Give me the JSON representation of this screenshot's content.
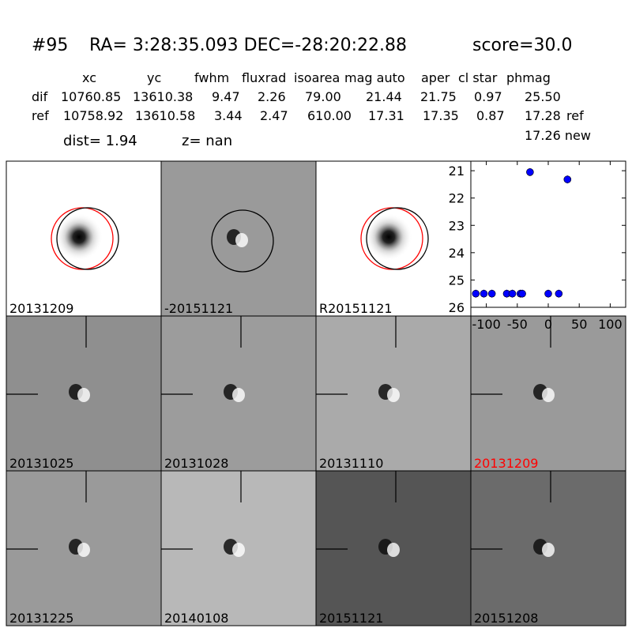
{
  "header": {
    "title_id": "#95",
    "title_coords": "RA= 3:28:35.093 DEC=-28:20:22.88",
    "title_score": "score=30.0",
    "columns": [
      "xc",
      "yc",
      "fwhm",
      "fluxrad",
      "isoarea",
      "mag auto",
      "aper",
      "cl star",
      "phmag"
    ],
    "rows": [
      {
        "label": "dif",
        "values": [
          "10760.85",
          "13610.38",
          "9.47",
          "2.26",
          "79.00",
          "21.44",
          "21.75",
          "0.97",
          "25.50"
        ],
        "suffix": ""
      },
      {
        "label": "ref",
        "values": [
          "10758.92",
          "13610.58",
          "3.44",
          "2.47",
          "610.00",
          "17.31",
          "17.35",
          "0.87",
          "17.28"
        ],
        "suffix": "ref"
      }
    ],
    "extra_phmag": "17.26 new",
    "dist": "dist=  1.94",
    "z": "z=   nan"
  },
  "stamps": [
    {
      "label": "20131209",
      "bg": "#ffffff",
      "label_color": "#000000"
    },
    {
      "label": "-20151121",
      "bg": "#9a9a9a",
      "label_color": "#000000"
    },
    {
      "label": "R20151121",
      "bg": "#ffffff",
      "label_color": "#000000"
    },
    {
      "label": "20131025",
      "bg": "#8f8f8f",
      "label_color": "#000000"
    },
    {
      "label": "20131028",
      "bg": "#9c9c9c",
      "label_color": "#000000"
    },
    {
      "label": "20131110",
      "bg": "#aaaaaa",
      "label_color": "#000000"
    },
    {
      "label": "20131209",
      "bg": "#9a9a9a",
      "label_color": "#ff0000"
    },
    {
      "label": "20131225",
      "bg": "#9a9a9a",
      "label_color": "#000000"
    },
    {
      "label": "20140108",
      "bg": "#b8b8b8",
      "label_color": "#000000"
    },
    {
      "label": "20151121",
      "bg": "#555555",
      "label_color": "#000000"
    },
    {
      "label": "20151208",
      "bg": "#6b6b6b",
      "label_color": "#000000"
    }
  ],
  "chart_data": {
    "type": "scatter",
    "xlim": [
      -125,
      125
    ],
    "ylim": [
      26,
      20.65
    ],
    "y_inverted": true,
    "xticks": [
      "-100",
      "-50",
      "0",
      "50",
      "100"
    ],
    "xtick_values": [
      -100,
      -50,
      0,
      50,
      100
    ],
    "yticks": [
      "21",
      "22",
      "23",
      "24",
      "25",
      "26"
    ],
    "ytick_values": [
      21,
      22,
      23,
      24,
      25,
      26
    ],
    "marker_color": "#0000ff",
    "points": [
      {
        "x": -117,
        "y": 25.5
      },
      {
        "x": -104,
        "y": 25.5
      },
      {
        "x": -91,
        "y": 25.5
      },
      {
        "x": -67,
        "y": 25.5
      },
      {
        "x": -58,
        "y": 25.5
      },
      {
        "x": -45,
        "y": 25.5
      },
      {
        "x": -42,
        "y": 25.5
      },
      {
        "x": 0,
        "y": 25.5
      },
      {
        "x": 17,
        "y": 25.5
      },
      {
        "x": -29.5,
        "y": 21.05
      },
      {
        "x": 31,
        "y": 21.32
      }
    ]
  }
}
